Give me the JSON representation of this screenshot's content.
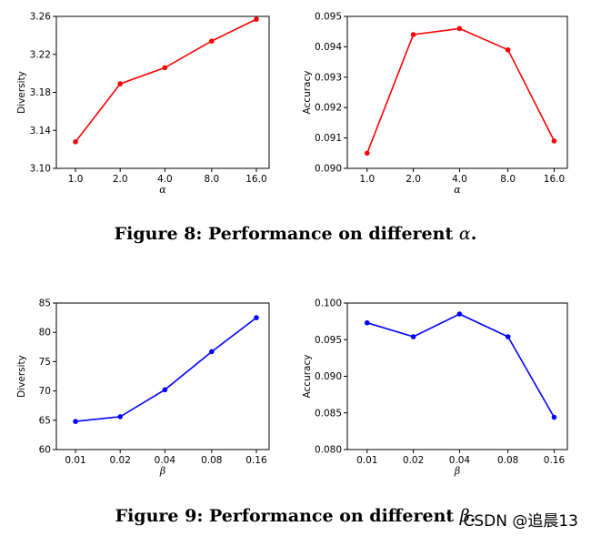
{
  "figure8": {
    "caption": "Figure 8: Performance on different ",
    "caption_symbol": "α",
    "caption_end": "."
  },
  "figure9": {
    "caption": "Figure 9: Performance on different ",
    "caption_symbol": "β",
    "caption_end": "."
  },
  "watermark": "CSDN @追晨13",
  "chart_data": [
    {
      "type": "line",
      "categories": [
        "1.0",
        "2.0",
        "4.0",
        "8.0",
        "16.0"
      ],
      "series": [
        {
          "values": [
            3.128,
            3.189,
            3.206,
            3.234,
            3.257
          ],
          "color": "#ff0000"
        }
      ],
      "xlabel": "α",
      "ylabel": "Diversity",
      "ylim": [
        3.1,
        3.26
      ],
      "yticks": [
        "3.10",
        "3.14",
        "3.18",
        "3.22",
        "3.26"
      ],
      "grid": false
    },
    {
      "type": "line",
      "categories": [
        "1.0",
        "2.0",
        "4.0",
        "8.0",
        "16.0"
      ],
      "series": [
        {
          "values": [
            0.0905,
            0.0944,
            0.0946,
            0.0939,
            0.0909
          ],
          "color": "#ff0000"
        }
      ],
      "xlabel": "α",
      "ylabel": "Accuracy",
      "ylim": [
        0.09,
        0.095
      ],
      "yticks": [
        "0.090",
        "0.091",
        "0.092",
        "0.093",
        "0.094",
        "0.095"
      ],
      "grid": false
    },
    {
      "type": "line",
      "categories": [
        "0.01",
        "0.02",
        "0.04",
        "0.08",
        "0.16"
      ],
      "series": [
        {
          "values": [
            64.8,
            65.6,
            70.2,
            76.7,
            82.5
          ],
          "color": "#0000ff"
        }
      ],
      "xlabel": "β",
      "ylabel": "Diversity",
      "ylim": [
        60,
        85
      ],
      "yticks": [
        "60",
        "65",
        "70",
        "75",
        "80",
        "85"
      ],
      "grid": false
    },
    {
      "type": "line",
      "categories": [
        "0.01",
        "0.02",
        "0.04",
        "0.08",
        "0.16"
      ],
      "series": [
        {
          "values": [
            0.0973,
            0.0954,
            0.0985,
            0.0954,
            0.0844
          ],
          "color": "#0000ff"
        }
      ],
      "xlabel": "β",
      "ylabel": "Accuracy",
      "ylim": [
        0.08,
        0.1
      ],
      "yticks": [
        "0.080",
        "0.085",
        "0.090",
        "0.095",
        "0.100"
      ],
      "grid": false
    }
  ]
}
